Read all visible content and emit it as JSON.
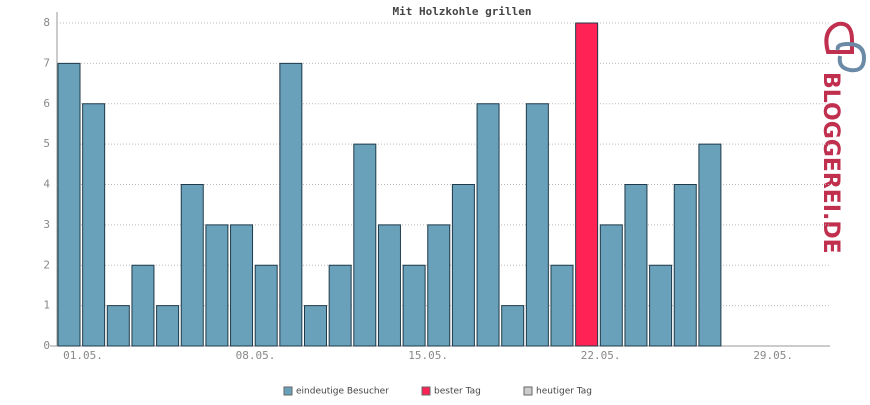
{
  "chart_data": {
    "type": "bar",
    "title": "Mit Holzkohle grillen",
    "categories": [
      "01.05.",
      null,
      null,
      null,
      null,
      null,
      null,
      "08.05.",
      null,
      null,
      null,
      null,
      null,
      null,
      "15.05.",
      null,
      null,
      null,
      null,
      null,
      null,
      "22.05.",
      null,
      null,
      null,
      null,
      null,
      null,
      "29.05.",
      null,
      null
    ],
    "series": [
      {
        "name": "eindeutige Besucher",
        "color": "#6aa1ba",
        "values": [
          7,
          6,
          1,
          2,
          1,
          4,
          3,
          3,
          2,
          7,
          1,
          2,
          5,
          3,
          2,
          3,
          4,
          6,
          1,
          6,
          2,
          null,
          3,
          4,
          2,
          4,
          5,
          null,
          null,
          null,
          null
        ]
      },
      {
        "name": "bester Tag",
        "color": "#ff2255",
        "values": [
          null,
          null,
          null,
          null,
          null,
          null,
          null,
          null,
          null,
          null,
          null,
          null,
          null,
          null,
          null,
          null,
          null,
          null,
          null,
          null,
          null,
          8,
          null,
          null,
          null,
          null,
          null,
          null,
          null,
          null,
          null
        ]
      },
      {
        "name": "heutiger Tag",
        "color": "#cccccc",
        "values": [
          null,
          null,
          null,
          null,
          null,
          null,
          null,
          null,
          null,
          null,
          null,
          null,
          null,
          null,
          null,
          null,
          null,
          null,
          null,
          null,
          null,
          null,
          null,
          null,
          null,
          null,
          null,
          null,
          null,
          null,
          null
        ]
      }
    ],
    "ylim": [
      0,
      8
    ],
    "yticks": [
      0,
      1,
      2,
      3,
      4,
      5,
      6,
      7,
      8
    ],
    "grid": true,
    "logo": "BLOGGEREI.DE"
  }
}
